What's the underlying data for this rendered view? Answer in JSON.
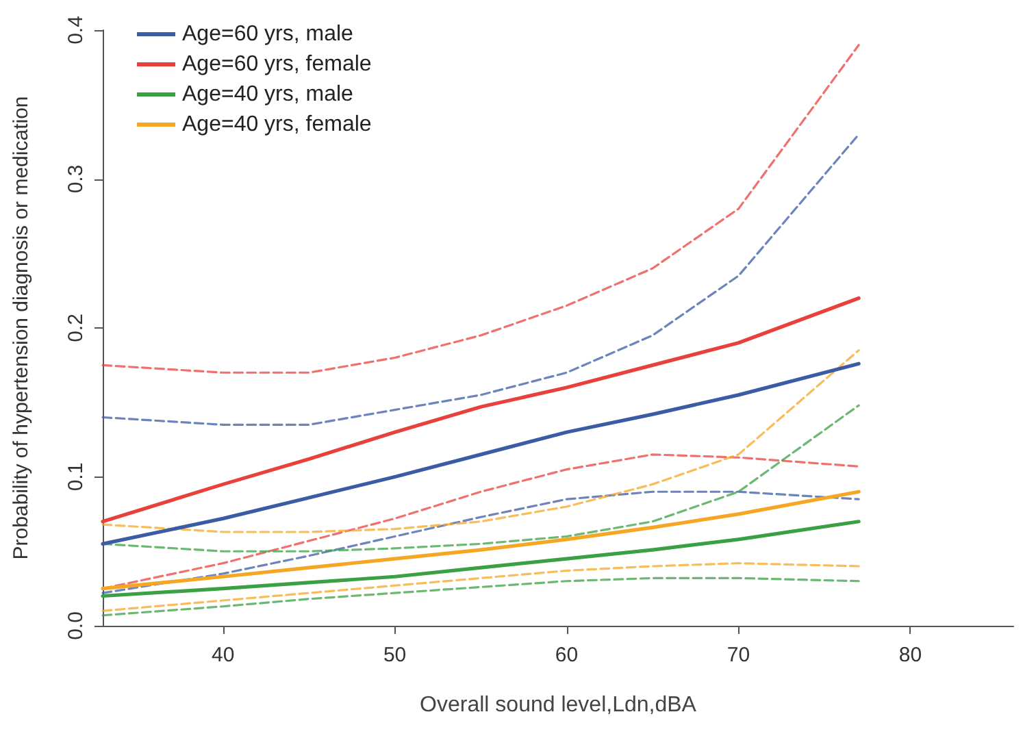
{
  "chart_data": {
    "type": "line",
    "xlabel": "Overall sound level,Ldn,dBA",
    "ylabel": "Probability of hypertension diagnosis or medication",
    "x": [
      33,
      40,
      45,
      50,
      55,
      60,
      65,
      70,
      77
    ],
    "xlim": [
      33,
      86
    ],
    "xticks": [
      40,
      50,
      60,
      70,
      80
    ],
    "ylim": [
      0,
      0.4
    ],
    "yticks": [
      {
        "value": 0,
        "label": "0.0"
      },
      {
        "value": 0.1,
        "label": "0.1"
      },
      {
        "value": 0.2,
        "label": "0.2"
      },
      {
        "value": 0.3,
        "label": "0.3"
      },
      {
        "value": 0.4,
        "label": "0.4"
      }
    ],
    "grid": false,
    "legend": "top left",
    "marker": "none",
    "line_style": "solid",
    "series": [
      {
        "name": "Age=60 yrs, male",
        "color": "#3b5ba5",
        "values": [
          0.055,
          0.072,
          0.086,
          0.1,
          0.115,
          0.13,
          0.142,
          0.155,
          0.176
        ]
      },
      {
        "name": "Age=60 yrs, female",
        "color": "#e8413c",
        "values": [
          0.07,
          0.095,
          0.112,
          0.13,
          0.147,
          0.16,
          0.175,
          0.19,
          0.22
        ]
      },
      {
        "name": "Age=40 yrs, male",
        "color": "#3aa043",
        "values": [
          0.02,
          0.025,
          0.029,
          0.033,
          0.039,
          0.045,
          0.051,
          0.058,
          0.07
        ]
      },
      {
        "name": "Age=40 yrs, female",
        "color": "#f5a623",
        "values": [
          0.025,
          0.033,
          0.039,
          0.045,
          0.051,
          0.058,
          0.066,
          0.075,
          0.09
        ]
      },
      {
        "color": "#3b5ba5",
        "line_style": "dashed",
        "values": [
          0.022,
          0.035,
          0.047,
          0.06,
          0.073,
          0.085,
          0.09,
          0.09,
          0.085
        ]
      },
      {
        "color": "#3b5ba5",
        "line_style": "dashed",
        "values": [
          0.14,
          0.135,
          0.135,
          0.145,
          0.155,
          0.17,
          0.195,
          0.235,
          0.33
        ]
      },
      {
        "color": "#e8413c",
        "line_style": "dashed",
        "values": [
          0.025,
          0.042,
          0.057,
          0.072,
          0.09,
          0.105,
          0.115,
          0.113,
          0.107
        ]
      },
      {
        "color": "#e8413c",
        "line_style": "dashed",
        "values": [
          0.175,
          0.17,
          0.17,
          0.18,
          0.195,
          0.215,
          0.24,
          0.28,
          0.39
        ]
      },
      {
        "color": "#3aa043",
        "line_style": "dashed",
        "values": [
          0.007,
          0.013,
          0.018,
          0.022,
          0.026,
          0.03,
          0.032,
          0.032,
          0.03
        ]
      },
      {
        "color": "#3aa043",
        "line_style": "dashed",
        "values": [
          0.055,
          0.05,
          0.05,
          0.052,
          0.055,
          0.06,
          0.07,
          0.09,
          0.148
        ]
      },
      {
        "color": "#f5a623",
        "line_style": "dashed",
        "values": [
          0.01,
          0.017,
          0.022,
          0.027,
          0.032,
          0.037,
          0.04,
          0.042,
          0.04
        ]
      },
      {
        "color": "#f5a623",
        "line_style": "dashed",
        "values": [
          0.068,
          0.063,
          0.063,
          0.065,
          0.07,
          0.08,
          0.095,
          0.115,
          0.185
        ]
      }
    ]
  }
}
